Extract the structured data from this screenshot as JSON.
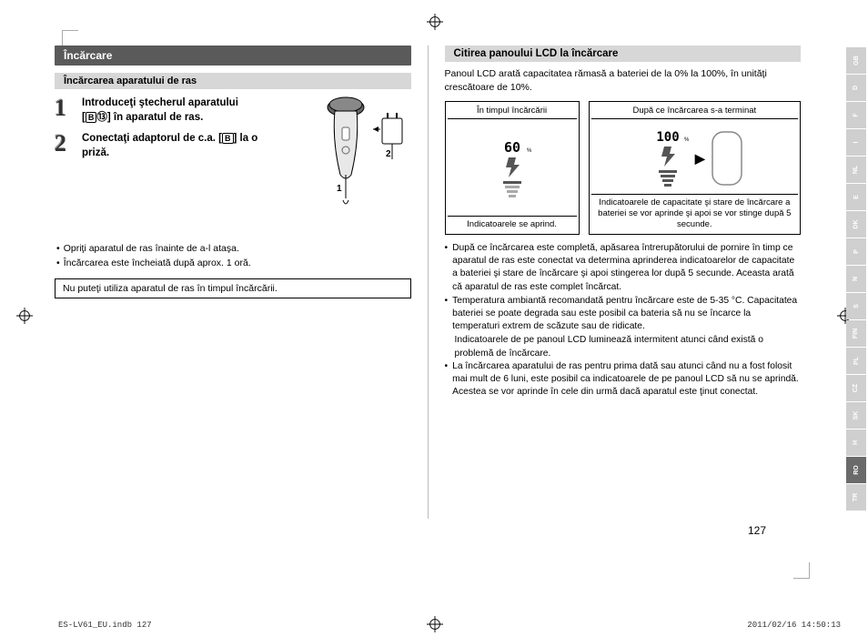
{
  "left": {
    "section_title": "Încărcare",
    "sub_title": "Încărcarea aparatului de ras",
    "steps": [
      {
        "num": "1",
        "text_a": "Introduceţi ştecherul aparatului",
        "text_b": "[",
        "text_c": "⑬] în aparatul de ras."
      },
      {
        "num": "2",
        "text_a": "Conectaţi adaptorul de c.a. [",
        "text_b": "] la o",
        "text_c": "priză."
      }
    ],
    "notes": [
      "Opriţi aparatul de ras înainte de a-l ataşa.",
      "Încărcarea este încheiată după aprox. 1 oră."
    ],
    "warning": "Nu puteţi utiliza aparatul de ras în timpul încărcării."
  },
  "right": {
    "section_title": "Citirea panoului LCD la încărcare",
    "intro": "Panoul LCD arată capacitatea rămasă a bateriei de la 0% la 100%, în unităţi crescătoare de 10%.",
    "lcd": {
      "col1_head": "În timpul încărcării",
      "col1_foot": "Indicatoarele se aprind.",
      "col1_val": "60",
      "col2_head": "După ce încărcarea s-a terminat",
      "col2_foot": "Indicatoarele de capacitate şi stare de încărcare a bateriei se vor aprinde şi apoi se vor stinge după 5 secunde.",
      "col2_val": "100"
    },
    "bullets": [
      {
        "t": "După ce încărcarea este completă, apăsarea întrerupătorului de pornire în timp ce aparatul de ras este conectat va determina aprinderea indicatoarelor de capacitate a bateriei şi stare de încărcare şi apoi stingerea lor după 5 secunde. Aceasta arată că aparatul de ras este complet încărcat."
      },
      {
        "t": "Temperatura ambiantă recomandată pentru încărcare este de 5-35 °C. Capacitatea bateriei se poate degrada sau este posibil ca bateria să nu se încarce la temperaturi extrem de scăzute sau de ridicate.",
        "cont": "Indicatoarele de pe panoul LCD luminează intermitent atunci când există o problemă de încărcare."
      },
      {
        "t": "La încărcarea aparatului de ras pentru prima dată sau atunci când nu a fost folosit mai mult de 6 luni, este posibil ca indicatoarele de pe panoul LCD să nu se aprindă. Acestea se vor aprinde în cele din urmă dacă aparatul este ţinut conectat."
      }
    ]
  },
  "lang_tabs": [
    "GB",
    "D",
    "F",
    "I",
    "NL",
    "E",
    "DK",
    "P",
    "N",
    "S",
    "FIN",
    "PL",
    "CZ",
    "SK",
    "H",
    "RO",
    "TR"
  ],
  "active_lang_index": 15,
  "page_number": "127",
  "footer_left": "ES-LV61_EU.indb   127",
  "footer_right": "2011/02/16   14:50:13"
}
